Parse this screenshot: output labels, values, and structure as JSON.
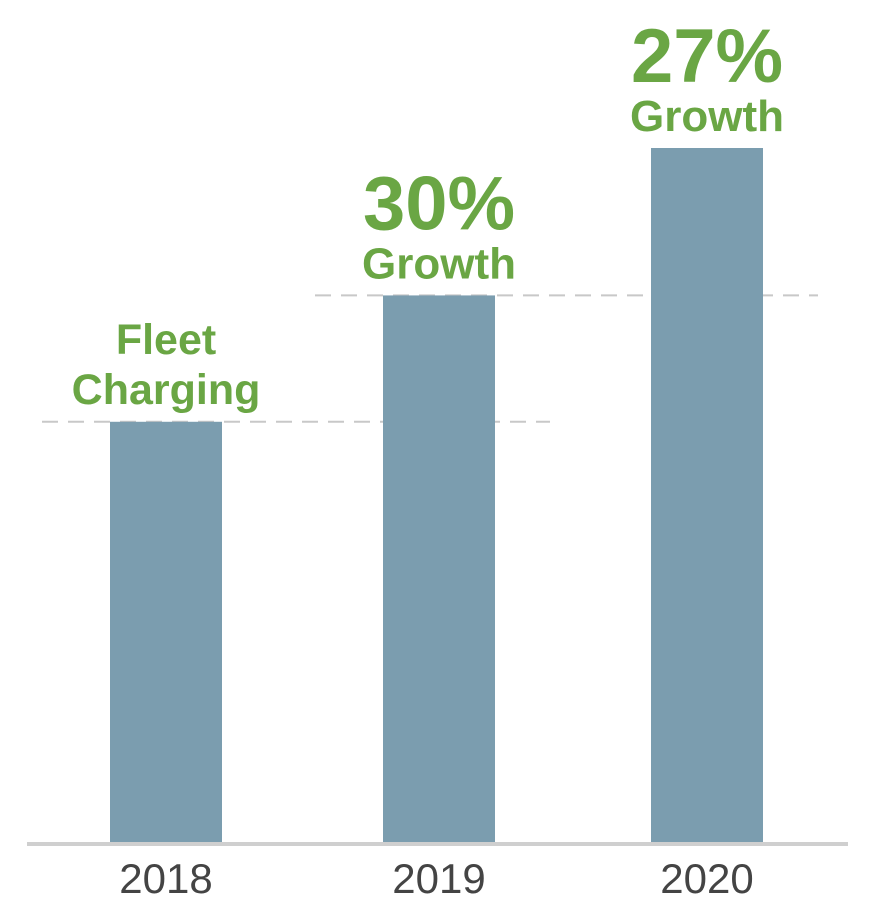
{
  "chart_data": {
    "type": "bar",
    "categories": [
      "2018",
      "2019",
      "2020"
    ],
    "values": [
      100,
      130,
      165
    ],
    "annotations": [
      {
        "category": "2018",
        "lines": [
          "Fleet",
          "Charging"
        ]
      },
      {
        "category": "2019",
        "headline": "30%",
        "subtext": "Growth"
      },
      {
        "category": "2020",
        "headline": "27%",
        "subtext": "Growth"
      }
    ],
    "reference_lines": [
      {
        "from": "2018",
        "to": "2019",
        "value": 100
      },
      {
        "from": "2019",
        "to": "2020",
        "value": 130
      }
    ],
    "ylim": [
      0,
      165
    ],
    "grid": false,
    "legend": "none"
  },
  "colors": {
    "bar": "#7b9daf",
    "accent": "#6aa644",
    "axis": "#cfcfcf",
    "reference": "#c8c8c8",
    "tick_text": "#444444"
  }
}
